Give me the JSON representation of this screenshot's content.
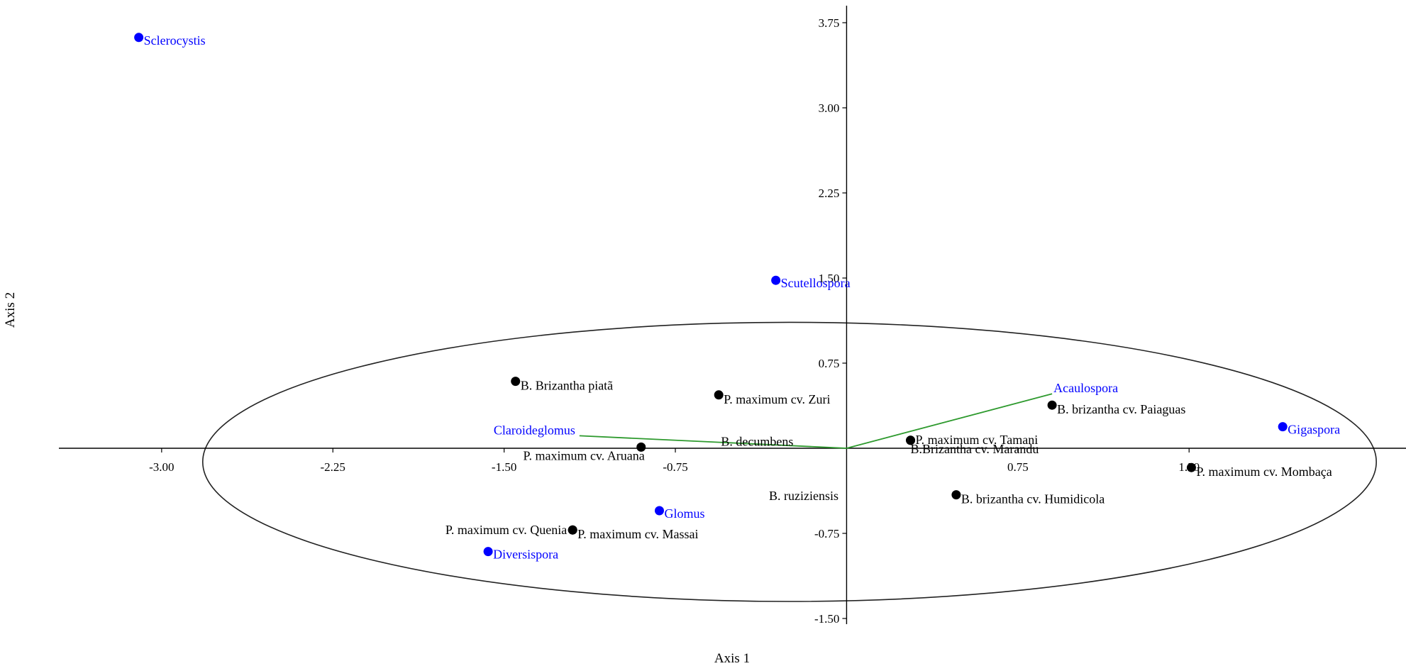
{
  "chart_data": {
    "type": "scatter",
    "title": "",
    "xlabel": "Axis 1",
    "ylabel": "Axis 2",
    "xlim": [
      -3.45,
      2.45
    ],
    "ylim": [
      -1.55,
      3.9
    ],
    "x_ticks": [
      {
        "value": -3.0,
        "label": "-3.00"
      },
      {
        "value": -2.25,
        "label": "-2.25"
      },
      {
        "value": -1.5,
        "label": "-1.50"
      },
      {
        "value": -0.75,
        "label": "-0.75"
      },
      {
        "value": 0.75,
        "label": "0.75"
      },
      {
        "value": 1.5,
        "label": "1.50"
      }
    ],
    "y_ticks": [
      {
        "value": 3.75,
        "label": "3.75"
      },
      {
        "value": 3.0,
        "label": "3.00"
      },
      {
        "value": 2.25,
        "label": "2.25"
      },
      {
        "value": 1.5,
        "label": "1.50"
      },
      {
        "value": 0.75,
        "label": "0.75"
      },
      {
        "value": -0.75,
        "label": "-0.75"
      },
      {
        "value": -1.5,
        "label": "-1.50"
      }
    ],
    "grid": false,
    "colors": {
      "genus": "#0000ff",
      "cultivar": "#000000",
      "vector": "#2e9a2e",
      "ellipse": "#222222",
      "axis": "#000000"
    },
    "genus_points": [
      {
        "label": "Sclerocystis",
        "x": -3.1,
        "y": 3.62
      },
      {
        "label": "Scutellospora",
        "x": -0.31,
        "y": 1.48
      },
      {
        "label": "Gigaspora",
        "x": 1.91,
        "y": 0.19
      },
      {
        "label": "Glomus",
        "x": -0.82,
        "y": -0.55
      },
      {
        "label": "Diversispora",
        "x": -1.57,
        "y": -0.91
      }
    ],
    "cultivar_points": [
      {
        "label": "B. Brizantha piatã",
        "x": -1.45,
        "y": 0.59
      },
      {
        "label": "P. maximum cv. Zuri",
        "x": -0.56,
        "y": 0.47
      },
      {
        "label": "B.  brizantha cv. Paiaguas",
        "x": 0.9,
        "y": 0.38
      },
      {
        "label": "P. maximum cv. Tamani",
        "x": 0.28,
        "y": 0.07
      },
      {
        "label": "B.Brizantha cv. Marandu",
        "x": 0.28,
        "y": 0.07
      },
      {
        "label": "P. maximum cv. Aruana",
        "x": -0.9,
        "y": 0.01
      },
      {
        "label": "P. maximum cv. Mombaça",
        "x": 1.51,
        "y": -0.17
      },
      {
        "label": "B. brizantha cv. Humidicola",
        "x": 0.48,
        "y": -0.41
      },
      {
        "label": "P. maximum cv. Quenia",
        "x": -1.2,
        "y": -0.72
      },
      {
        "label": "P. maximum cv. Massai",
        "x": -1.2,
        "y": -0.72
      }
    ],
    "cultivar_labels_only": [
      {
        "label": "B.  decumbens",
        "x": -0.55,
        "y": 0.06
      },
      {
        "label": "B.  ruziziensis",
        "x": -0.34,
        "y": -0.42
      }
    ],
    "vectors": [
      {
        "label": "Acaulospora",
        "x": 0.9,
        "y": 0.48
      },
      {
        "label": "Claroideglomus",
        "x": -1.17,
        "y": 0.11
      }
    ],
    "ellipse": {
      "cx": -0.25,
      "cy": -0.12,
      "rx": 2.57,
      "ry": 1.23
    }
  }
}
